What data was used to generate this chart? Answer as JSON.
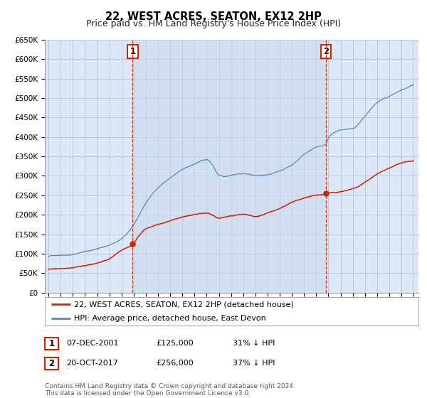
{
  "title": "22, WEST ACRES, SEATON, EX12 2HP",
  "subtitle": "Price paid vs. HM Land Registry's House Price Index (HPI)",
  "ylim": [
    0,
    650000
  ],
  "yticks": [
    0,
    50000,
    100000,
    150000,
    200000,
    250000,
    300000,
    350000,
    400000,
    450000,
    500000,
    550000,
    600000,
    650000
  ],
  "xlim_start": 1994.7,
  "xlim_end": 2025.4,
  "bg_color": "#dce8f5",
  "fig_bg_color": "#ffffff",
  "grid_color": "#b0c4de",
  "red_line_color": "#cc2200",
  "blue_line_color": "#5588bb",
  "shade_color": "#dce8f5",
  "sale1_year": 2001.92,
  "sale1_price": 125000,
  "sale2_year": 2017.8,
  "sale2_price": 256000,
  "legend_label_red": "22, WEST ACRES, SEATON, EX12 2HP (detached house)",
  "legend_label_blue": "HPI: Average price, detached house, East Devon",
  "table_row1": [
    "1",
    "07-DEC-2001",
    "£125,000",
    "31% ↓ HPI"
  ],
  "table_row2": [
    "2",
    "20-OCT-2017",
    "£256,000",
    "37% ↓ HPI"
  ],
  "footnote1": "Contains HM Land Registry data © Crown copyright and database right 2024.",
  "footnote2": "This data is licensed under the Open Government Licence v3.0.",
  "title_fontsize": 10.5,
  "subtitle_fontsize": 9,
  "tick_fontsize": 7.5,
  "legend_fontsize": 8,
  "table_fontsize": 8,
  "footnote_fontsize": 6.5
}
